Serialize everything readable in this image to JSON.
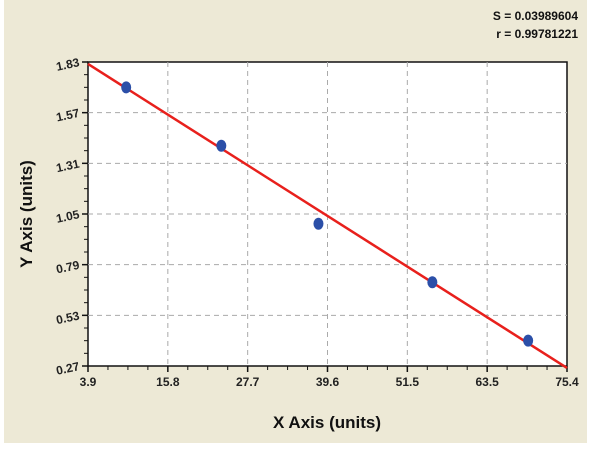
{
  "chart_data": {
    "type": "scatter",
    "xlabel": "X Axis (units)",
    "ylabel": "Y Axis (units)",
    "xlim": [
      3.9,
      75.4
    ],
    "ylim": [
      0.27,
      1.83
    ],
    "x_ticks": [
      "3.9",
      "15.8",
      "27.7",
      "39.6",
      "51.5",
      "63.5",
      "75.4"
    ],
    "y_ticks": [
      "0.27",
      "0.53",
      "0.79",
      "1.05",
      "1.31",
      "1.57",
      "1.83"
    ],
    "grid": true,
    "points": [
      {
        "x": 9.6,
        "y": 1.7
      },
      {
        "x": 23.8,
        "y": 1.4
      },
      {
        "x": 38.3,
        "y": 1.0
      },
      {
        "x": 55.3,
        "y": 0.7
      },
      {
        "x": 69.6,
        "y": 0.4
      }
    ],
    "fit_line": {
      "x": [
        3.9,
        75.4
      ],
      "y": [
        1.82,
        0.26
      ]
    },
    "annotations": [
      "S = 0.03989604",
      "r = 0.99781221"
    ],
    "colors": {
      "points": "#2b4fa8",
      "line": "#e8201c",
      "background": "#ede9d6"
    }
  }
}
